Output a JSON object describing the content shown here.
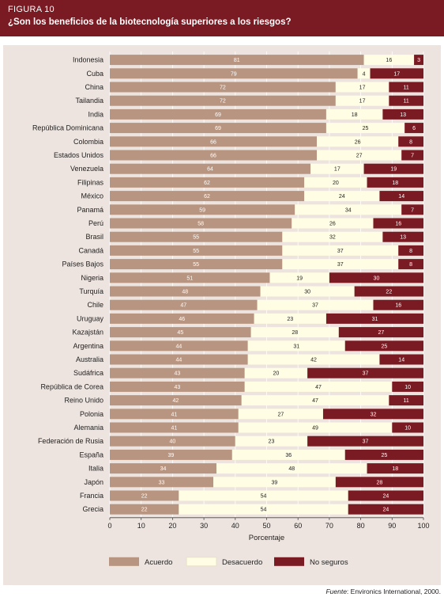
{
  "figure": {
    "label": "FIGURA 10",
    "title": "¿Son los beneficios de la biotecnología superiores a los riesgos?"
  },
  "source": {
    "prefix": "Fuente",
    "text": ": Environics International, 2000."
  },
  "colors": {
    "header": "#7a1a22",
    "panel": "#ede4df",
    "acuerdo": "#b89580",
    "desacuerdo": "#fffde3",
    "no_seguros": "#7a1a22"
  },
  "chart_data": {
    "type": "bar",
    "orientation": "horizontal",
    "stacked": true,
    "xlabel": "Porcentaje",
    "xlim": [
      0,
      100
    ],
    "xticks": [
      0,
      10,
      20,
      30,
      40,
      50,
      60,
      70,
      80,
      90,
      100
    ],
    "legend_position": "bottom",
    "categories": [
      "Indonesia",
      "Cuba",
      "China",
      "Tailandia",
      "India",
      "República Dominicana",
      "Colombia",
      "Estados Unidos",
      "Venezuela",
      "Filipinas",
      "México",
      "Panamá",
      "Perú",
      "Brasil",
      "Canadá",
      "Países Bajos",
      "Nigeria",
      "Turquía",
      "Chile",
      "Uruguay",
      "Kazajstán",
      "Argentina",
      "Australia",
      "Sudáfrica",
      "República de Corea",
      "Reino Unido",
      "Polonia",
      "Alemania",
      "Federación de Rusia",
      "España",
      "Italia",
      "Japón",
      "Francia",
      "Grecia"
    ],
    "series": [
      {
        "name": "Acuerdo",
        "color": "#b89580",
        "values": [
          81,
          79,
          72,
          72,
          69,
          69,
          66,
          66,
          64,
          62,
          62,
          59,
          58,
          55,
          55,
          55,
          51,
          48,
          47,
          46,
          45,
          44,
          44,
          43,
          43,
          42,
          41,
          41,
          40,
          39,
          34,
          33,
          22,
          22
        ]
      },
      {
        "name": "Desacuerdo",
        "color": "#fffde3",
        "values": [
          16,
          4,
          17,
          17,
          18,
          25,
          26,
          27,
          17,
          20,
          24,
          34,
          26,
          32,
          37,
          37,
          19,
          30,
          37,
          23,
          28,
          31,
          42,
          20,
          47,
          47,
          27,
          49,
          23,
          36,
          48,
          39,
          54,
          54
        ]
      },
      {
        "name": "No seguros",
        "color": "#7a1a22",
        "values": [
          3,
          17,
          11,
          11,
          13,
          6,
          8,
          7,
          19,
          18,
          14,
          7,
          16,
          13,
          8,
          8,
          30,
          22,
          16,
          31,
          27,
          25,
          14,
          37,
          10,
          11,
          32,
          10,
          37,
          25,
          18,
          28,
          24,
          24
        ]
      }
    ]
  }
}
